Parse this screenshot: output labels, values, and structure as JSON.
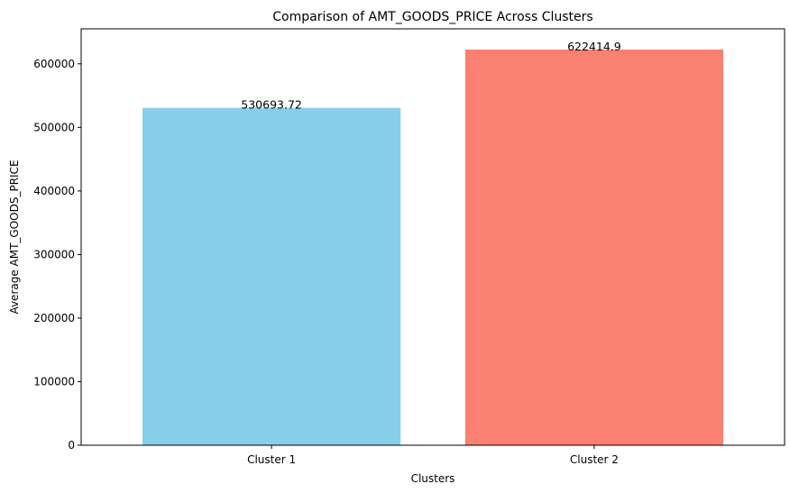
{
  "chart_data": {
    "type": "bar",
    "title": "Comparison of AMT_GOODS_PRICE Across Clusters",
    "xlabel": "Clusters",
    "ylabel": "Average AMT_GOODS_PRICE",
    "categories": [
      "Cluster 1",
      "Cluster 2"
    ],
    "values": [
      530693.72,
      622414.9
    ],
    "value_labels": [
      "530693.72",
      "622414.9"
    ],
    "colors": [
      "#87ceeb",
      "#fa8072"
    ],
    "ylim": [
      0,
      655000
    ],
    "yticks": [
      0,
      100000,
      200000,
      300000,
      400000,
      500000,
      600000
    ],
    "ytick_labels": [
      "0",
      "100000",
      "200000",
      "300000",
      "400000",
      "500000",
      "600000"
    ],
    "grid": false,
    "legend": "none"
  }
}
